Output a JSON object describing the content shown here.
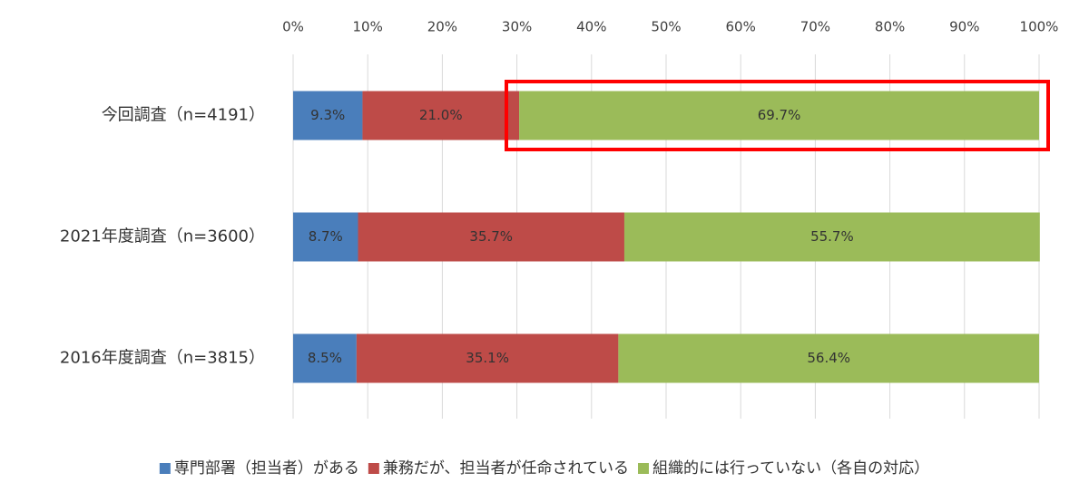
{
  "chart_data": {
    "type": "bar",
    "orientation": "horizontal",
    "stacked": true,
    "categories": [
      "今回調査（n=4191）",
      "2021年度調査（n=3600）",
      "2016年度調査（n=3815）"
    ],
    "series": [
      {
        "name": "専門部署（担当者）がある",
        "color": "#4a7ebb",
        "values": [
          9.3,
          8.7,
          8.5
        ],
        "value_labels": [
          "9.3%",
          "8.7%",
          "8.5%"
        ]
      },
      {
        "name": "兼務だが、担当者が任命されている",
        "color": "#be4b48",
        "values": [
          21.0,
          35.7,
          35.1
        ],
        "value_labels": [
          "21.0%",
          "35.7%",
          "35.1%"
        ]
      },
      {
        "name": "組織的には行っていない（各自の対応）",
        "color": "#9bbb59",
        "values": [
          69.7,
          55.7,
          56.4
        ],
        "value_labels": [
          "69.7%",
          "55.7%",
          "56.4%"
        ]
      }
    ],
    "xlim": [
      0,
      100
    ],
    "xticks": [
      {
        "value": 0,
        "label": "0%"
      },
      {
        "value": 10,
        "label": "10%"
      },
      {
        "value": 20,
        "label": "20%"
      },
      {
        "value": 30,
        "label": "30%"
      },
      {
        "value": 40,
        "label": "40%"
      },
      {
        "value": 50,
        "label": "50%"
      },
      {
        "value": 60,
        "label": "60%"
      },
      {
        "value": 70,
        "label": "70%"
      },
      {
        "value": 80,
        "label": "80%"
      },
      {
        "value": 90,
        "label": "90%"
      },
      {
        "value": 100,
        "label": "100%"
      }
    ],
    "grid": true,
    "legend": "bottom"
  }
}
